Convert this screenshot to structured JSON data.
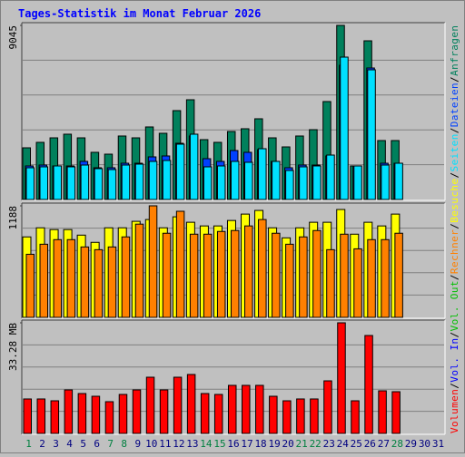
{
  "chart_data": [
    {
      "type": "bar",
      "title": "Tages-Statistik im Monat Februar 2026",
      "ylim": [
        0,
        9045
      ],
      "yticks": [
        9045
      ],
      "grid": true,
      "series": [
        {
          "name": "Anfragen",
          "color": "#00805c",
          "values": [
            2685,
            2968,
            3203,
            3392,
            3203,
            2450,
            2355,
            3298,
            3203,
            3769,
            3439,
            4617,
            5182,
            3109,
            2968,
            3533,
            3675,
            4193,
            3203,
            2732,
            3298,
            3627,
            5088,
            9045,
            1743,
            8244,
            3062,
            3062,
            null,
            null,
            null
          ]
        },
        {
          "name": "Dateien",
          "color": "#0040ff",
          "values": [
            1743,
            1790,
            1743,
            1743,
            1979,
            1649,
            1649,
            1884,
            1884,
            2214,
            2261,
            2921,
            3298,
            2120,
            1979,
            2544,
            2450,
            2591,
            1979,
            1649,
            1790,
            1790,
            2261,
            6973,
            1743,
            6831,
            1884,
            1884,
            null,
            null,
            null
          ]
        },
        {
          "name": "Seiten",
          "color": "#00e0ff",
          "values": [
            1649,
            1696,
            1743,
            1696,
            1790,
            1602,
            1555,
            1790,
            1837,
            1979,
            2026,
            2874,
            3392,
            1696,
            1743,
            1979,
            1932,
            2638,
            1979,
            1507,
            1696,
            1743,
            2308,
            7396,
            1743,
            6737,
            1790,
            1884,
            null,
            null,
            null
          ]
        }
      ]
    },
    {
      "type": "bar",
      "ylim": [
        0,
        1188
      ],
      "yticks": [
        1188
      ],
      "grid": true,
      "series": [
        {
          "name": "Besuche",
          "color": "#ffff00",
          "values": [
            857,
            954,
            935,
            935,
            876,
            799,
            954,
            954,
            1023,
            1042,
            954,
            1071,
            1013,
            974,
            974,
            1032,
            1100,
            1139,
            954,
            847,
            954,
            1013,
            1013,
            1149,
            886,
            1013,
            974,
            1100,
            null,
            null,
            null
          ]
        },
        {
          "name": "Rechner",
          "color": "#ff8000",
          "values": [
            672,
            779,
            828,
            828,
            750,
            721,
            750,
            857,
            993,
            1188,
            896,
            1130,
            886,
            886,
            915,
            925,
            974,
            1042,
            896,
            779,
            857,
            925,
            721,
            886,
            730,
            828,
            828,
            896,
            null,
            null,
            null
          ]
        }
      ]
    },
    {
      "type": "bar",
      "ylim": [
        0,
        33.28
      ],
      "yticks": [
        {
          "value": 33.28,
          "label": "33.28 MB"
        }
      ],
      "grid": true,
      "legend_separator": "/",
      "categories": [
        "1",
        "2",
        "3",
        "4",
        "5",
        "6",
        "7",
        "8",
        "9",
        "10",
        "11",
        "12",
        "13",
        "14",
        "15",
        "16",
        "17",
        "18",
        "19",
        "20",
        "21",
        "22",
        "23",
        "24",
        "25",
        "26",
        "27",
        "28",
        "29",
        "30",
        "31"
      ],
      "category_colors": [
        "#008040",
        "#000080",
        "#000080",
        "#000080",
        "#000080",
        "#000080",
        "#008040",
        "#008040",
        "#000080",
        "#000080",
        "#000080",
        "#000080",
        "#000080",
        "#008040",
        "#008040",
        "#000080",
        "#000080",
        "#000080",
        "#000080",
        "#000080",
        "#008040",
        "#008040",
        "#000080",
        "#000080",
        "#000080",
        "#000080",
        "#000080",
        "#008040",
        "#000080",
        "#000080",
        "#000080"
      ],
      "series": [
        {
          "name": "Vol. Out",
          "color": "#00c000",
          "values": [
            null,
            null,
            null,
            null,
            null,
            null,
            null,
            null,
            null,
            null,
            null,
            null,
            null,
            null,
            null,
            null,
            null,
            null,
            null,
            null,
            null,
            null,
            null,
            null,
            null,
            null,
            null,
            null,
            null,
            null,
            null
          ]
        },
        {
          "name": "Vol. In",
          "color": "#0000ff",
          "values": [
            null,
            null,
            null,
            null,
            null,
            null,
            null,
            null,
            null,
            null,
            null,
            null,
            null,
            null,
            null,
            null,
            null,
            null,
            null,
            null,
            null,
            null,
            null,
            null,
            null,
            null,
            null,
            null,
            null,
            null,
            null
          ]
        },
        {
          "name": "Volumen",
          "color": "#ff0000",
          "values": [
            10.37,
            10.37,
            9.82,
            13.09,
            12.0,
            11.18,
            9.55,
            11.73,
            13.09,
            16.91,
            13.09,
            16.91,
            17.73,
            12.0,
            11.73,
            14.46,
            14.46,
            14.46,
            11.18,
            9.82,
            10.37,
            10.37,
            15.82,
            33.28,
            9.82,
            29.46,
            12.82,
            12.55,
            null,
            null,
            null
          ]
        }
      ]
    }
  ]
}
